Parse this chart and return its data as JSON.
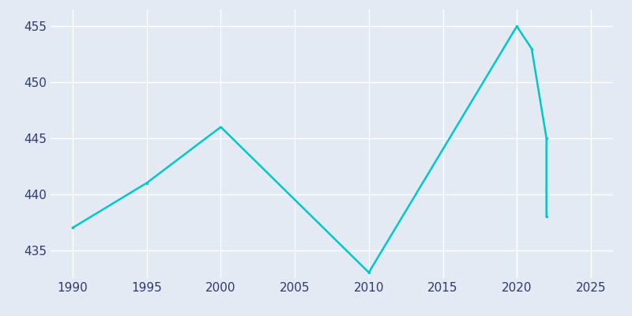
{
  "x_data": [
    1990,
    1995,
    2000,
    2010,
    2020,
    2021,
    2022,
    2022
  ],
  "y_data": [
    437,
    441,
    446,
    433,
    455,
    453,
    445,
    438
  ],
  "xlim": [
    1988.5,
    2026.5
  ],
  "ylim": [
    432.5,
    456.5
  ],
  "xticks": [
    1990,
    1995,
    2000,
    2005,
    2010,
    2015,
    2020,
    2025
  ],
  "yticks": [
    435,
    440,
    445,
    450,
    455
  ],
  "line_color": "#00C8C8",
  "bg_color": "#E3EAF4",
  "grid_color": "#FFFFFF",
  "tick_label_color": "#2E3A6E",
  "line_width": 1.8,
  "marker_size": 2.5
}
